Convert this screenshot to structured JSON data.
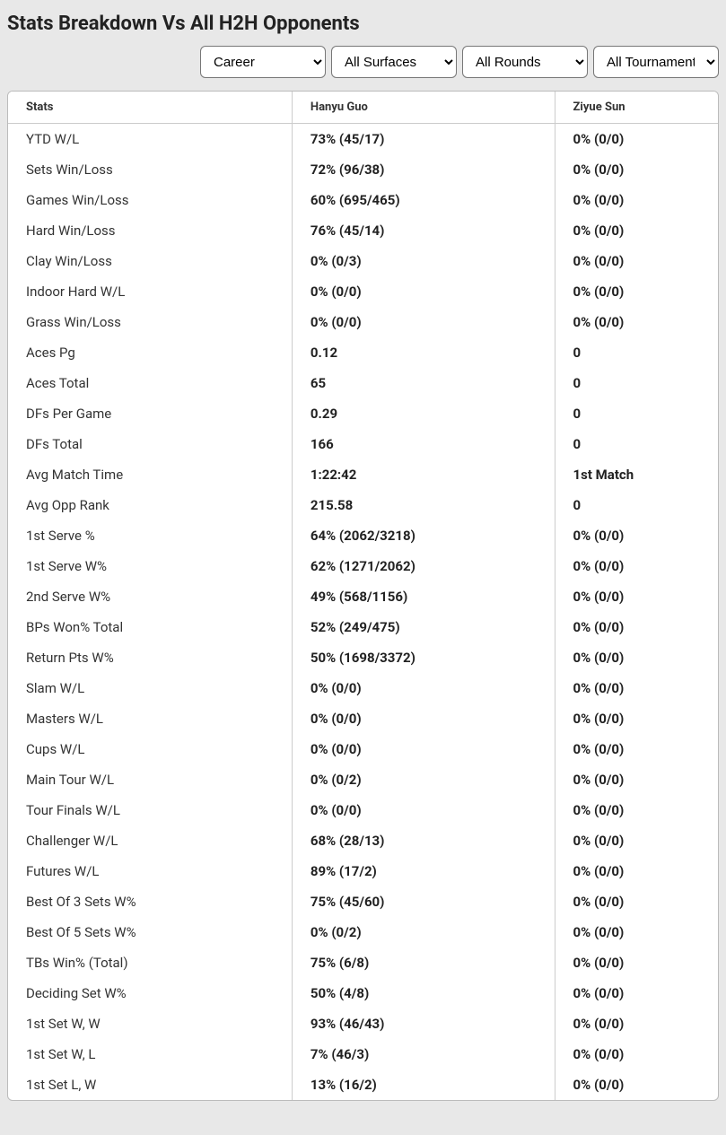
{
  "heading": "Stats Breakdown Vs All H2H Opponents",
  "filters": {
    "period": "Career",
    "surface": "All Surfaces",
    "round": "All Rounds",
    "tournament": "All Tournaments"
  },
  "columns": {
    "stats": "Stats",
    "p1": "Hanyu Guo",
    "p2": "Ziyue Sun"
  },
  "rows": [
    {
      "label": "YTD W/L",
      "p1": "73% (45/17)",
      "p2": "0% (0/0)"
    },
    {
      "label": "Sets Win/Loss",
      "p1": "72% (96/38)",
      "p2": "0% (0/0)"
    },
    {
      "label": "Games Win/Loss",
      "p1": "60% (695/465)",
      "p2": "0% (0/0)"
    },
    {
      "label": "Hard Win/Loss",
      "p1": "76% (45/14)",
      "p2": "0% (0/0)"
    },
    {
      "label": "Clay Win/Loss",
      "p1": "0% (0/3)",
      "p2": "0% (0/0)"
    },
    {
      "label": "Indoor Hard W/L",
      "p1": "0% (0/0)",
      "p2": "0% (0/0)"
    },
    {
      "label": "Grass Win/Loss",
      "p1": "0% (0/0)",
      "p2": "0% (0/0)"
    },
    {
      "label": "Aces Pg",
      "p1": "0.12",
      "p2": "0"
    },
    {
      "label": "Aces Total",
      "p1": "65",
      "p2": "0"
    },
    {
      "label": "DFs Per Game",
      "p1": "0.29",
      "p2": "0"
    },
    {
      "label": "DFs Total",
      "p1": "166",
      "p2": "0"
    },
    {
      "label": "Avg Match Time",
      "p1": "1:22:42",
      "p2": "1st Match"
    },
    {
      "label": "Avg Opp Rank",
      "p1": "215.58",
      "p2": "0"
    },
    {
      "label": "1st Serve %",
      "p1": "64% (2062/3218)",
      "p2": "0% (0/0)"
    },
    {
      "label": "1st Serve W%",
      "p1": "62% (1271/2062)",
      "p2": "0% (0/0)"
    },
    {
      "label": "2nd Serve W%",
      "p1": "49% (568/1156)",
      "p2": "0% (0/0)"
    },
    {
      "label": "BPs Won% Total",
      "p1": "52% (249/475)",
      "p2": "0% (0/0)"
    },
    {
      "label": "Return Pts W%",
      "p1": "50% (1698/3372)",
      "p2": "0% (0/0)"
    },
    {
      "label": "Slam W/L",
      "p1": "0% (0/0)",
      "p2": "0% (0/0)"
    },
    {
      "label": "Masters W/L",
      "p1": "0% (0/0)",
      "p2": "0% (0/0)"
    },
    {
      "label": "Cups W/L",
      "p1": "0% (0/0)",
      "p2": "0% (0/0)"
    },
    {
      "label": "Main Tour W/L",
      "p1": "0% (0/2)",
      "p2": "0% (0/0)"
    },
    {
      "label": "Tour Finals W/L",
      "p1": "0% (0/0)",
      "p2": "0% (0/0)"
    },
    {
      "label": "Challenger W/L",
      "p1": "68% (28/13)",
      "p2": "0% (0/0)"
    },
    {
      "label": "Futures W/L",
      "p1": "89% (17/2)",
      "p2": "0% (0/0)"
    },
    {
      "label": "Best Of 3 Sets W%",
      "p1": "75% (45/60)",
      "p2": "0% (0/0)"
    },
    {
      "label": "Best Of 5 Sets W%",
      "p1": "0% (0/2)",
      "p2": "0% (0/0)"
    },
    {
      "label": "TBs Win% (Total)",
      "p1": "75% (6/8)",
      "p2": "0% (0/0)"
    },
    {
      "label": "Deciding Set W%",
      "p1": "50% (4/8)",
      "p2": "0% (0/0)"
    },
    {
      "label": "1st Set W, W",
      "p1": "93% (46/43)",
      "p2": "0% (0/0)"
    },
    {
      "label": "1st Set W, L",
      "p1": "7% (46/3)",
      "p2": "0% (0/0)"
    },
    {
      "label": "1st Set L, W",
      "p1": "13% (16/2)",
      "p2": "0% (0/0)"
    }
  ]
}
